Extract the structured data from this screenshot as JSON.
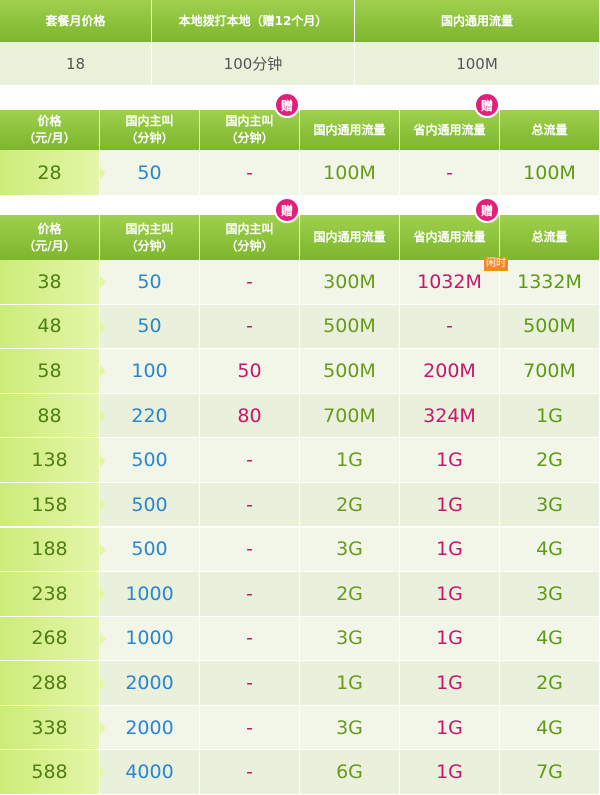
{
  "table1": {
    "headers": [
      "套餐月价格",
      "本地拨打本地（赠12个月）",
      "国内通用流量"
    ],
    "row": [
      "18",
      "100分钟",
      "100M"
    ]
  },
  "table2": {
    "headers": [
      [
        "价格",
        "（元/月）"
      ],
      [
        "国内主叫",
        "（分钟）"
      ],
      [
        "国内主叫",
        "（分钟）"
      ],
      [
        "国内通用流量"
      ],
      [
        "省内通用流量"
      ],
      [
        "总流量"
      ]
    ],
    "badges": [
      "赠",
      "赠"
    ],
    "rows": [
      [
        "28",
        "50",
        "-",
        "100M",
        "-",
        "100M"
      ]
    ]
  },
  "table3": {
    "headers": [
      [
        "价格",
        "（元/月）"
      ],
      [
        "国内主叫",
        "（分钟）"
      ],
      [
        "国内主叫",
        "（分钟）"
      ],
      [
        "国内通用流量"
      ],
      [
        "省内通用流量"
      ],
      [
        "总流量"
      ]
    ],
    "badges": [
      "赠",
      "赠"
    ],
    "tags": [
      "闲时"
    ],
    "rows": [
      [
        "38",
        "50",
        "-",
        "300M",
        "1032M",
        "1332M"
      ],
      [
        "48",
        "50",
        "-",
        "500M",
        "-",
        "500M"
      ],
      [
        "58",
        "100",
        "50",
        "500M",
        "200M",
        "700M"
      ],
      [
        "88",
        "220",
        "80",
        "700M",
        "324M",
        "1G"
      ],
      [
        "138",
        "500",
        "-",
        "1G",
        "1G",
        "2G"
      ],
      [
        "158",
        "500",
        "-",
        "2G",
        "1G",
        "3G"
      ],
      [
        "188",
        "500",
        "-",
        "3G",
        "1G",
        "4G"
      ],
      [
        "238",
        "1000",
        "-",
        "2G",
        "1G",
        "3G"
      ],
      [
        "268",
        "1000",
        "-",
        "3G",
        "1G",
        "4G"
      ],
      [
        "288",
        "2000",
        "-",
        "1G",
        "1G",
        "2G"
      ],
      [
        "338",
        "2000",
        "-",
        "3G",
        "1G",
        "4G"
      ],
      [
        "588",
        "4000",
        "-",
        "6G",
        "1G",
        "7G"
      ]
    ]
  }
}
